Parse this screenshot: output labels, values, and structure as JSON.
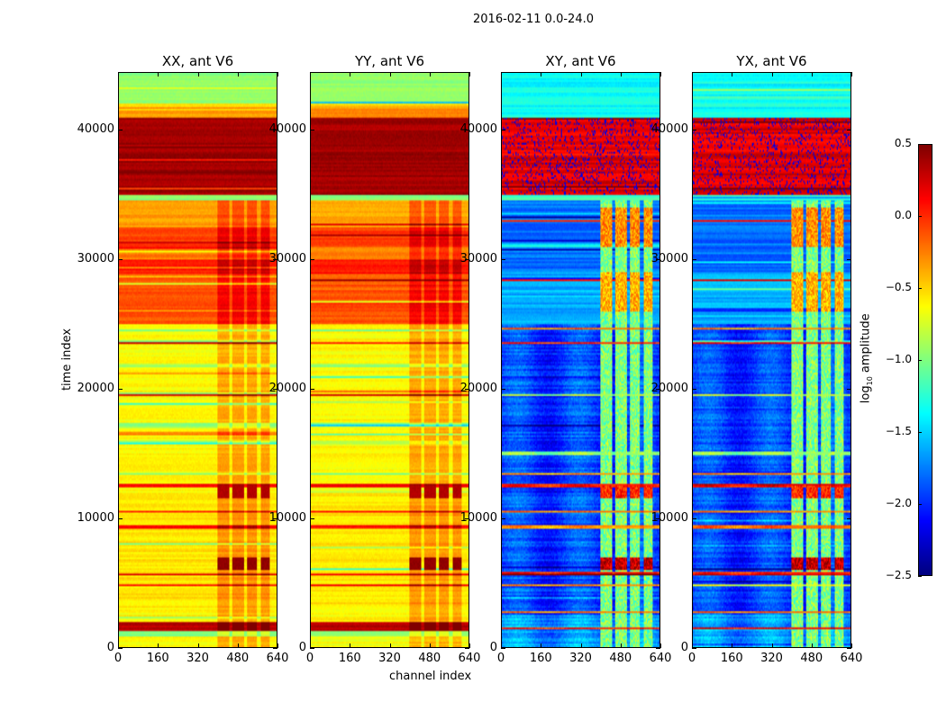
{
  "chart_data": {
    "type": "heatmap",
    "title": "2016-02-11 0.0-24.0",
    "xlabel": "channel index",
    "ylabel": "time index",
    "xlim": [
      0,
      640
    ],
    "ylim": [
      0,
      44400
    ],
    "xticks": [
      "0",
      "160",
      "320",
      "480",
      "640"
    ],
    "xtick_values": [
      0,
      160,
      320,
      480,
      640
    ],
    "yticks": [
      "0",
      "10000",
      "20000",
      "30000",
      "40000"
    ],
    "ytick_values": [
      0,
      10000,
      20000,
      30000,
      40000
    ],
    "colormap": "jet",
    "colorbar": {
      "label_main": "log",
      "label_sub": "10",
      "label_rest": " amplitude",
      "range": [
        -2.5,
        0.5
      ],
      "ticks": [
        "0.5",
        "0.0",
        "−0.5",
        "−1.0",
        "−1.5",
        "−2.0",
        "−2.5"
      ],
      "tick_values": [
        0.5,
        0,
        -0.5,
        -1,
        -1.5,
        -2,
        -2.5
      ]
    },
    "panels": [
      {
        "title": "XX, ant V6",
        "kind": "parallel"
      },
      {
        "title": "YY, ant V6",
        "kind": "parallel"
      },
      {
        "title": "XY, ant V6",
        "kind": "cross"
      },
      {
        "title": "YX, ant V6",
        "kind": "cross"
      }
    ],
    "bands": {
      "parallel": [
        [
          0,
          800,
          -0.65
        ],
        [
          800,
          1200,
          -1.0
        ],
        [
          1200,
          2000,
          0.35
        ],
        [
          2000,
          3000,
          -0.6
        ],
        [
          3000,
          12000,
          -0.55
        ],
        [
          12000,
          25000,
          -0.62
        ],
        [
          25000,
          28800,
          -0.12
        ],
        [
          28800,
          30000,
          0.05
        ],
        [
          30000,
          31000,
          -0.25
        ],
        [
          31000,
          32500,
          -0.05
        ],
        [
          32500,
          34500,
          -0.35
        ],
        [
          34500,
          35000,
          -1.0
        ],
        [
          35000,
          41000,
          0.4
        ],
        [
          41000,
          41800,
          -0.3
        ],
        [
          41800,
          42000,
          -0.5
        ],
        [
          42000,
          44400,
          -0.95
        ]
      ],
      "cross": [
        [
          0,
          2500,
          -1.7
        ],
        [
          2500,
          25000,
          -1.95
        ],
        [
          25000,
          29000,
          -1.6
        ],
        [
          29000,
          34500,
          -1.8
        ],
        [
          34500,
          35000,
          -1.2
        ],
        [
          35000,
          41000,
          0.2
        ],
        [
          41000,
          44400,
          -1.35
        ]
      ]
    },
    "lines": {
      "parallel": [
        [
          4800,
          0.1
        ],
        [
          5600,
          0.2
        ],
        [
          8000,
          -1.0
        ],
        [
          9300,
          0.1
        ],
        [
          10500,
          0.1
        ],
        [
          12500,
          0.1
        ],
        [
          13400,
          -1.0
        ],
        [
          15800,
          -0.9
        ],
        [
          17200,
          -1.0
        ],
        [
          19500,
          0.2
        ],
        [
          21800,
          -0.9
        ],
        [
          23500,
          0.1
        ],
        [
          24500,
          -1.0
        ]
      ],
      "cross": [
        [
          1500,
          0.1
        ],
        [
          2700,
          -0.3
        ],
        [
          4800,
          -0.3
        ],
        [
          5700,
          0.1
        ],
        [
          9300,
          -0.3
        ],
        [
          10500,
          -0.3
        ],
        [
          12500,
          0.1
        ],
        [
          13400,
          -0.4
        ],
        [
          15000,
          -1.0
        ],
        [
          19500,
          -0.9
        ],
        [
          23500,
          0.0
        ],
        [
          24600,
          -0.3
        ],
        [
          28400,
          0.1
        ],
        [
          33000,
          0.1
        ]
      ]
    },
    "strips": {
      "channels": [
        [
          400,
          450
        ],
        [
          460,
          510
        ],
        [
          520,
          560
        ],
        [
          575,
          612
        ]
      ],
      "parallel": {
        "delta": 0.25,
        "hot": [
          [
            6000,
            7000,
            0.45
          ],
          [
            11500,
            12500,
            0.35
          ]
        ]
      },
      "cross": {
        "base": -1.0,
        "hot": [
          [
            6000,
            7000,
            0.3
          ],
          [
            11500,
            12500,
            0.0
          ],
          [
            26000,
            29000,
            -0.4
          ],
          [
            31000,
            34000,
            -0.3
          ]
        ]
      }
    }
  }
}
